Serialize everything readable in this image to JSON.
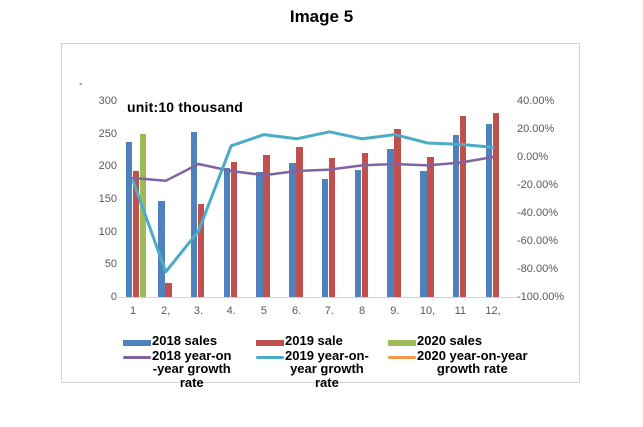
{
  "title": "Image 5",
  "unit_label": "unit:10 thousand",
  "axis_artifact": "-",
  "chart_data": {
    "type": "bar",
    "subtype": "combo-bar-line-dual-axis",
    "title": "Image 5",
    "annotation": "unit:10 thousand",
    "categories": [
      "1",
      "2,",
      "3.",
      "4.",
      "5",
      "6.",
      "7.",
      "8",
      "9.",
      "10,",
      "11",
      "12,"
    ],
    "left_axis": {
      "label": "unit:10 thousand",
      "min": 0,
      "max": 300,
      "step": 50,
      "ticks": [
        "0",
        "50",
        "100",
        "150",
        "200",
        "250",
        "300"
      ]
    },
    "right_axis": {
      "min": -100,
      "max": 40,
      "step": 20,
      "ticks": [
        "40.00%",
        "20.00%",
        "0.00%",
        "-20.00%",
        "-40.00%",
        "-60.00%",
        "-80.00%",
        "-100.00%"
      ]
    },
    "grid": false,
    "legend_position": "bottom",
    "series": [
      {
        "name": "2018 sales",
        "type": "bar",
        "axis": "left",
        "color": "#4F81BD",
        "values": [
          237,
          147,
          252,
          197,
          192,
          205,
          181,
          195,
          227,
          193,
          248,
          265
        ]
      },
      {
        "name": "2019 sale",
        "type": "bar",
        "axis": "left",
        "color": "#C0504D",
        "values": [
          193,
          21,
          143,
          207,
          218,
          230,
          212,
          220,
          257,
          215,
          277,
          282
        ]
      },
      {
        "name": "2020 sales",
        "type": "bar",
        "axis": "left",
        "color": "#9BBB59",
        "values": [
          250,
          null,
          null,
          null,
          null,
          null,
          null,
          null,
          null,
          null,
          null,
          null
        ]
      },
      {
        "name": "2018 year-on-year growth rate",
        "type": "line",
        "axis": "right",
        "color": "#8064A2",
        "values": [
          -15,
          -17,
          -5,
          -10,
          -13,
          -10,
          -9,
          -6,
          -5,
          -6,
          -4,
          0
        ]
      },
      {
        "name": "2019 year-on-year growth rate",
        "type": "line",
        "axis": "right",
        "color": "#4BACC6",
        "values": [
          -17,
          -82,
          -53,
          8,
          16,
          13,
          18,
          13,
          16,
          10,
          9,
          7
        ]
      },
      {
        "name": "2020 year-on-year growth rate",
        "type": "line",
        "axis": "right",
        "color": "#F79646",
        "values": []
      }
    ]
  },
  "legend": {
    "entries": [
      {
        "swatch": "bar",
        "color": "#4F81BD",
        "lines": [
          "2018 sales"
        ]
      },
      {
        "swatch": "bar",
        "color": "#C0504D",
        "lines": [
          "2019 sale"
        ]
      },
      {
        "swatch": "bar",
        "color": "#9BBB59",
        "lines": [
          "2020 sales"
        ]
      },
      {
        "swatch": "line",
        "color": "#8064A2",
        "lines": [
          "2018 year-on",
          "-year growth",
          "rate"
        ]
      },
      {
        "swatch": "line",
        "color": "#4BACC6",
        "lines": [
          "2019 year-on-",
          "year growth",
          "rate"
        ]
      },
      {
        "swatch": "line",
        "color": "#F79646",
        "lines": [
          "2020 year-on-year",
          "growth rate"
        ]
      }
    ]
  }
}
